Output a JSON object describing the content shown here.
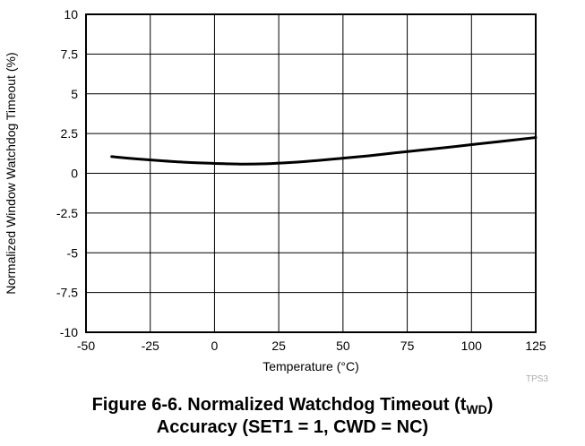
{
  "figure_code": "TPS3",
  "caption": {
    "line1_prefix": "Figure 6-6. Normalized Watchdog Timeout (t",
    "line1_sub": "WD",
    "line1_suffix": ")",
    "line2": "Accuracy (SET1 = 1, CWD = NC)"
  },
  "chart_data": {
    "type": "line",
    "title": "",
    "xlabel": "Temperature (°C)",
    "ylabel": "Normalized Window Watchdog Timeout (%)",
    "xlim": [
      -50,
      125
    ],
    "ylim": [
      -10,
      10
    ],
    "xticks": [
      -50,
      -25,
      0,
      25,
      50,
      75,
      100,
      125
    ],
    "yticks": [
      10,
      7.5,
      5,
      2.5,
      0,
      -2.5,
      -5,
      -7.5,
      -10
    ],
    "xtick_labels": [
      "-50",
      "-25",
      "0",
      "25",
      "50",
      "75",
      "100",
      "125"
    ],
    "ytick_labels": [
      "10",
      "7.5",
      "5",
      "2.5",
      "0",
      "-2.5",
      "-5",
      "-7.5",
      "-10"
    ],
    "grid": true,
    "series": [
      {
        "x": [
          -40,
          -30,
          -20,
          -10,
          0,
          10,
          20,
          30,
          40,
          50,
          60,
          70,
          80,
          90,
          100,
          110,
          125
        ],
        "y": [
          1.05,
          0.9,
          0.78,
          0.68,
          0.62,
          0.58,
          0.6,
          0.68,
          0.8,
          0.95,
          1.1,
          1.28,
          1.45,
          1.62,
          1.8,
          1.98,
          2.25
        ]
      }
    ],
    "colors": {
      "line": "#000000",
      "grid": "#000000"
    }
  }
}
